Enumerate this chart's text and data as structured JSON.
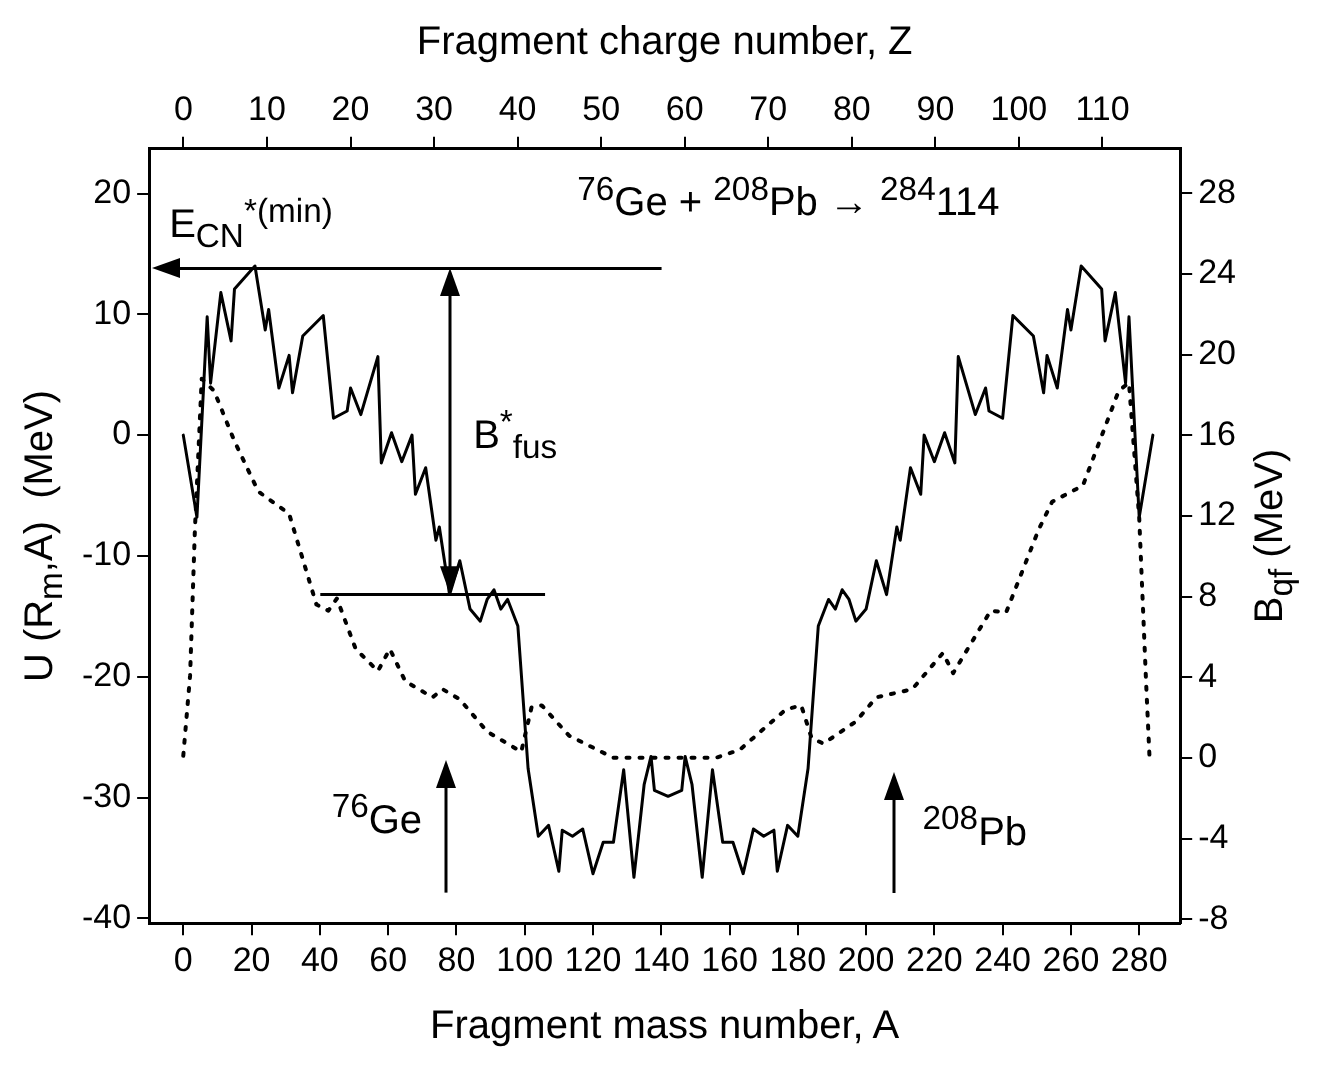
{
  "chart_data": {
    "type": "line",
    "xlabel": "Fragment mass number, A",
    "x2label": "Fragment charge number, Z",
    "ylabel": "U (R$_{m}$,A)  (MeV)",
    "y2label": "B$_{qf}$ (MeV)",
    "xlim": [
      -10,
      292
    ],
    "xticks": [
      0,
      20,
      40,
      60,
      80,
      100,
      120,
      140,
      160,
      180,
      200,
      220,
      240,
      260,
      280
    ],
    "x2lim": [
      -4.1,
      119.3
    ],
    "x2ticks": [
      0,
      10,
      20,
      30,
      40,
      50,
      60,
      70,
      80,
      90,
      100,
      110
    ],
    "ylim": [
      -40.4,
      23.7
    ],
    "yticks": [
      -40,
      -30,
      -20,
      -10,
      0,
      10,
      20
    ],
    "y2lim": [
      -8.2,
      30.2
    ],
    "y2ticks": [
      -8,
      -4,
      0,
      4,
      8,
      12,
      16,
      20,
      24,
      28
    ],
    "grid": false,
    "legend": false,
    "marker": "none",
    "series": [
      {
        "color": "#000000",
        "line_style": "solid",
        "x": [
          0,
          4,
          7,
          8,
          11,
          14,
          15,
          21,
          24,
          25,
          28,
          31,
          32,
          35,
          41,
          44,
          48,
          49,
          52,
          57,
          58,
          61,
          64,
          67,
          68,
          71,
          74,
          75,
          78,
          81,
          84,
          87,
          89,
          91,
          93,
          95,
          98,
          101,
          104,
          107,
          110,
          111,
          114,
          117,
          120,
          123,
          126,
          129,
          132,
          135,
          137,
          138,
          142,
          146,
          147,
          149,
          152,
          155,
          158,
          161,
          164,
          167,
          170,
          173,
          174,
          177,
          180,
          183,
          186,
          189,
          191,
          193,
          195,
          197,
          200,
          203,
          206,
          209,
          210,
          213,
          216,
          217,
          220,
          223,
          226,
          227,
          232,
          235,
          236,
          240,
          243,
          249,
          252,
          253,
          256,
          259,
          260,
          263,
          269,
          270,
          273,
          276,
          277,
          280,
          284
        ],
        "values": [
          0,
          -6.8,
          9.8,
          4.3,
          11.8,
          7.8,
          12.1,
          14,
          8.7,
          10.4,
          3.9,
          6.6,
          3.5,
          8.2,
          9.9,
          1.4,
          2,
          3.9,
          1.7,
          6.5,
          -2.3,
          0.2,
          -2.2,
          0,
          -4.9,
          -2.7,
          -8.7,
          -7.6,
          -13.2,
          -10.4,
          -14.4,
          -15.4,
          -13.6,
          -12.8,
          -14.4,
          -13.6,
          -15.8,
          -27.6,
          -33.2,
          -32.3,
          -36.1,
          -32.7,
          -33.2,
          -32.6,
          -36.3,
          -33.7,
          -33.7,
          -27.7,
          -36.6,
          -28.9,
          -26.6,
          -29.4,
          -29.9,
          -29.4,
          -26.6,
          -28.9,
          -36.6,
          -27.7,
          -33.7,
          -33.7,
          -36.3,
          -32.6,
          -33.2,
          -32.7,
          -36.1,
          -32.3,
          -33.2,
          -27.6,
          -15.8,
          -13.6,
          -14.4,
          -12.8,
          -13.6,
          -15.4,
          -14.4,
          -10.4,
          -13.2,
          -7.6,
          -8.7,
          -2.7,
          -4.9,
          0,
          -2.2,
          0.2,
          -2.3,
          6.5,
          1.7,
          3.9,
          2,
          1.4,
          9.9,
          8.2,
          3.5,
          6.6,
          3.9,
          10.4,
          8.7,
          14,
          12.1,
          7.8,
          11.8,
          4.3,
          9.8,
          -6.8,
          0
        ]
      },
      {
        "color": "#000000",
        "line_style": "dotted",
        "axis": "y2",
        "x": [
          0,
          2,
          3.4,
          5.4,
          9,
          15,
          22,
          31,
          39,
          42.5,
          45,
          50.5,
          57,
          60.5,
          65,
          73,
          76,
          81,
          89,
          99,
          102,
          105,
          113,
          126,
          156,
          163,
          176.5,
          181,
          184,
          187.5,
          197,
          203,
          213.5,
          222.5,
          225.5,
          236.5,
          241,
          250.5,
          254.5,
          263.5,
          274,
          277,
          280,
          282,
          283,
          284
        ],
        "values": [
          0.1,
          4.1,
          11.3,
          18.8,
          18.2,
          15.7,
          13.2,
          12.1,
          7.6,
          7.3,
          7.9,
          5.4,
          4.3,
          5.4,
          3.8,
          3,
          3.4,
          2.9,
          1.3,
          0.3,
          2.5,
          2.6,
          1.1,
          0,
          0,
          0.4,
          2.4,
          2.6,
          1,
          0.7,
          1.8,
          3,
          3.4,
          5.2,
          4.2,
          7.3,
          7.2,
          11.3,
          12.7,
          13.5,
          18.2,
          18.6,
          11.9,
          3.8,
          0.1,
          0.1
        ]
      }
    ],
    "ref_lines": [
      {
        "axis": "y",
        "value": 13.8,
        "label": "E$_{CN}$$^{*(min)}$"
      },
      {
        "axis": "y",
        "value": -13.2
      }
    ],
    "annotations": [
      "$^{76}$Ge + $^{208}$Pb → $^{284}$114",
      "B$^{*}$$_{fus}$",
      "$^{76}$Ge",
      "$^{208}$Pb"
    ]
  }
}
